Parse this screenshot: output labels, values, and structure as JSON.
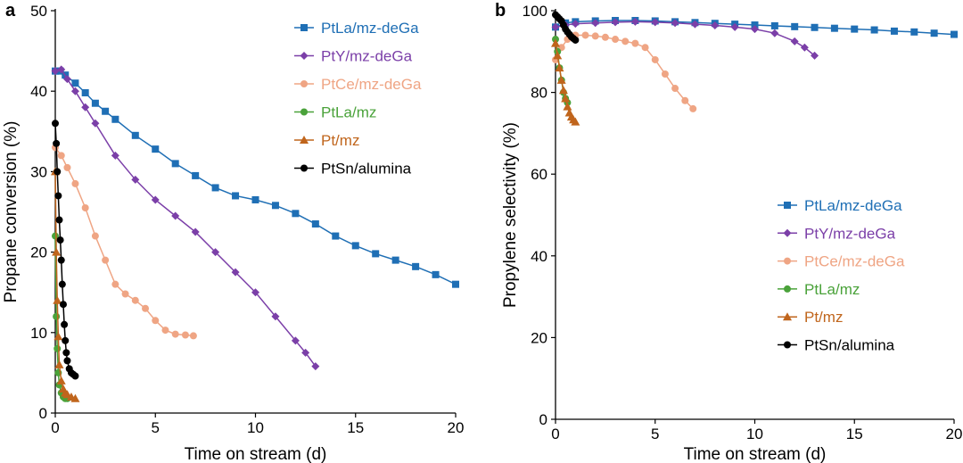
{
  "chart_data": [
    {
      "panel": "a",
      "type": "line",
      "xlabel": "Time on stream (d)",
      "ylabel": "Propane conversion (%)",
      "xlim": [
        0,
        20
      ],
      "ylim": [
        0,
        50
      ],
      "xticks": [
        0,
        5,
        10,
        15,
        20
      ],
      "yticks": [
        0,
        10,
        20,
        30,
        40,
        50
      ],
      "legend_position": "top-right",
      "series": [
        {
          "name": "PtLa/mz-deGa",
          "color": "#1f6fb5",
          "marker": "square",
          "x": [
            0,
            0.25,
            0.5,
            1,
            1.5,
            2,
            2.5,
            3,
            4,
            5,
            6,
            7,
            8,
            9,
            10,
            11,
            12,
            13,
            14,
            15,
            16,
            17,
            18,
            19,
            20
          ],
          "y": [
            42.5,
            42.5,
            42.0,
            41.0,
            39.8,
            38.5,
            37.5,
            36.5,
            34.5,
            32.8,
            31.0,
            29.5,
            28.0,
            27.0,
            26.5,
            25.8,
            24.8,
            23.5,
            22.0,
            20.8,
            19.8,
            19.0,
            18.2,
            17.2,
            16.0
          ]
        },
        {
          "name": "PtY/mz-deGa",
          "color": "#7b3fa8",
          "marker": "diamond",
          "x": [
            0,
            0.3,
            0.6,
            1,
            1.5,
            2,
            3,
            4,
            5,
            6,
            7,
            8,
            9,
            10,
            11,
            12,
            12.5,
            13
          ],
          "y": [
            42.5,
            42.7,
            41.5,
            40.0,
            38.0,
            36.0,
            32.0,
            29.0,
            26.5,
            24.5,
            22.5,
            20.0,
            17.5,
            15.0,
            12.0,
            9.0,
            7.5,
            5.8
          ]
        },
        {
          "name": "PtCe/mz-deGa",
          "color": "#efa584",
          "marker": "circle",
          "x": [
            0,
            0.3,
            0.6,
            1,
            1.5,
            2,
            2.5,
            3,
            3.5,
            4,
            4.5,
            5,
            5.5,
            6,
            6.5,
            6.9
          ],
          "y": [
            33.0,
            32.0,
            30.5,
            28.5,
            25.5,
            22.0,
            19.0,
            16.0,
            14.8,
            14.0,
            13.0,
            11.5,
            10.3,
            9.8,
            9.7,
            9.6
          ]
        },
        {
          "name": "PtLa/mz",
          "color": "#4aa23a",
          "marker": "circle",
          "x": [
            0,
            0.05,
            0.1,
            0.15,
            0.2,
            0.3,
            0.4,
            0.5,
            0.6
          ],
          "y": [
            22.0,
            12.0,
            8.0,
            5.0,
            3.5,
            2.5,
            2.0,
            1.8,
            1.8
          ]
        },
        {
          "name": "Pt/mz",
          "color": "#c0651c",
          "marker": "triangle",
          "x": [
            0,
            0.05,
            0.1,
            0.15,
            0.2,
            0.3,
            0.4,
            0.5,
            0.6,
            0.8,
            1.0
          ],
          "y": [
            30.0,
            20.0,
            14.0,
            9.5,
            6.0,
            4.0,
            3.0,
            2.5,
            2.3,
            2.0,
            1.8
          ]
        },
        {
          "name": "PtSn/alumina",
          "color": "#000000",
          "marker": "circle",
          "x": [
            0,
            0.05,
            0.1,
            0.15,
            0.2,
            0.25,
            0.3,
            0.35,
            0.4,
            0.45,
            0.5,
            0.55,
            0.6,
            0.7,
            0.8,
            0.9,
            1.0
          ],
          "y": [
            36.0,
            33.5,
            30.0,
            27.0,
            24.0,
            21.5,
            19.0,
            16.0,
            13.5,
            11.0,
            9.0,
            7.5,
            6.5,
            5.5,
            5.0,
            4.8,
            4.6
          ]
        }
      ]
    },
    {
      "panel": "b",
      "type": "line",
      "xlabel": "Time on stream (d)",
      "ylabel": "Propylene selectivity (%)",
      "xlim": [
        0,
        20
      ],
      "ylim": [
        0,
        100
      ],
      "xticks": [
        0,
        5,
        10,
        15,
        20
      ],
      "yticks": [
        0,
        20,
        40,
        60,
        80,
        100
      ],
      "legend_position": "center-right",
      "series": [
        {
          "name": "PtLa/mz-deGa",
          "color": "#1f6fb5",
          "marker": "square",
          "x": [
            0,
            0.5,
            1,
            2,
            3,
            4,
            5,
            6,
            7,
            8,
            9,
            10,
            11,
            12,
            13,
            14,
            15,
            16,
            17,
            18,
            19,
            20
          ],
          "y": [
            96.0,
            97.0,
            97.3,
            97.5,
            97.6,
            97.6,
            97.5,
            97.3,
            97.1,
            96.9,
            96.7,
            96.5,
            96.3,
            96.1,
            95.9,
            95.7,
            95.5,
            95.3,
            95.0,
            94.8,
            94.5,
            94.2
          ]
        },
        {
          "name": "PtY/mz-deGa",
          "color": "#7b3fa8",
          "marker": "diamond",
          "x": [
            0,
            0.5,
            1,
            2,
            3,
            4,
            5,
            6,
            7,
            8,
            9,
            10,
            11,
            12,
            12.5,
            13
          ],
          "y": [
            96.0,
            96.5,
            96.8,
            97.0,
            97.2,
            97.3,
            97.2,
            97.0,
            96.7,
            96.4,
            96.0,
            95.5,
            94.5,
            92.5,
            91.0,
            89.0
          ]
        },
        {
          "name": "PtCe/mz-deGa",
          "color": "#efa584",
          "marker": "circle",
          "x": [
            0,
            0.3,
            0.6,
            1,
            1.5,
            2,
            2.5,
            3,
            3.5,
            4,
            4.5,
            5,
            5.5,
            6,
            6.5,
            6.9
          ],
          "y": [
            88.0,
            91.0,
            93.0,
            94.0,
            94.0,
            93.8,
            93.5,
            93.0,
            92.5,
            92.0,
            91.0,
            88.0,
            84.5,
            81.0,
            78.0,
            76.0
          ]
        },
        {
          "name": "PtLa/mz",
          "color": "#4aa23a",
          "marker": "circle",
          "x": [
            0,
            0.1,
            0.2,
            0.3,
            0.4,
            0.5,
            0.6
          ],
          "y": [
            93.0,
            90.0,
            86.0,
            83.0,
            80.0,
            78.5,
            77.5
          ]
        },
        {
          "name": "Pt/mz",
          "color": "#c0651c",
          "marker": "triangle",
          "x": [
            0,
            0.1,
            0.2,
            0.3,
            0.4,
            0.5,
            0.6,
            0.7,
            0.8,
            0.9,
            1.0
          ],
          "y": [
            92.0,
            89.0,
            86.0,
            83.0,
            80.5,
            78.5,
            76.5,
            75.0,
            74.0,
            73.3,
            72.8
          ]
        },
        {
          "name": "PtSn/alumina",
          "color": "#000000",
          "marker": "circle",
          "x": [
            0,
            0.1,
            0.2,
            0.3,
            0.4,
            0.5,
            0.6,
            0.7,
            0.8,
            0.9,
            1.0
          ],
          "y": [
            99.0,
            98.5,
            98.0,
            97.5,
            96.5,
            95.5,
            94.8,
            94.2,
            93.6,
            93.2,
            92.8
          ]
        }
      ]
    }
  ]
}
